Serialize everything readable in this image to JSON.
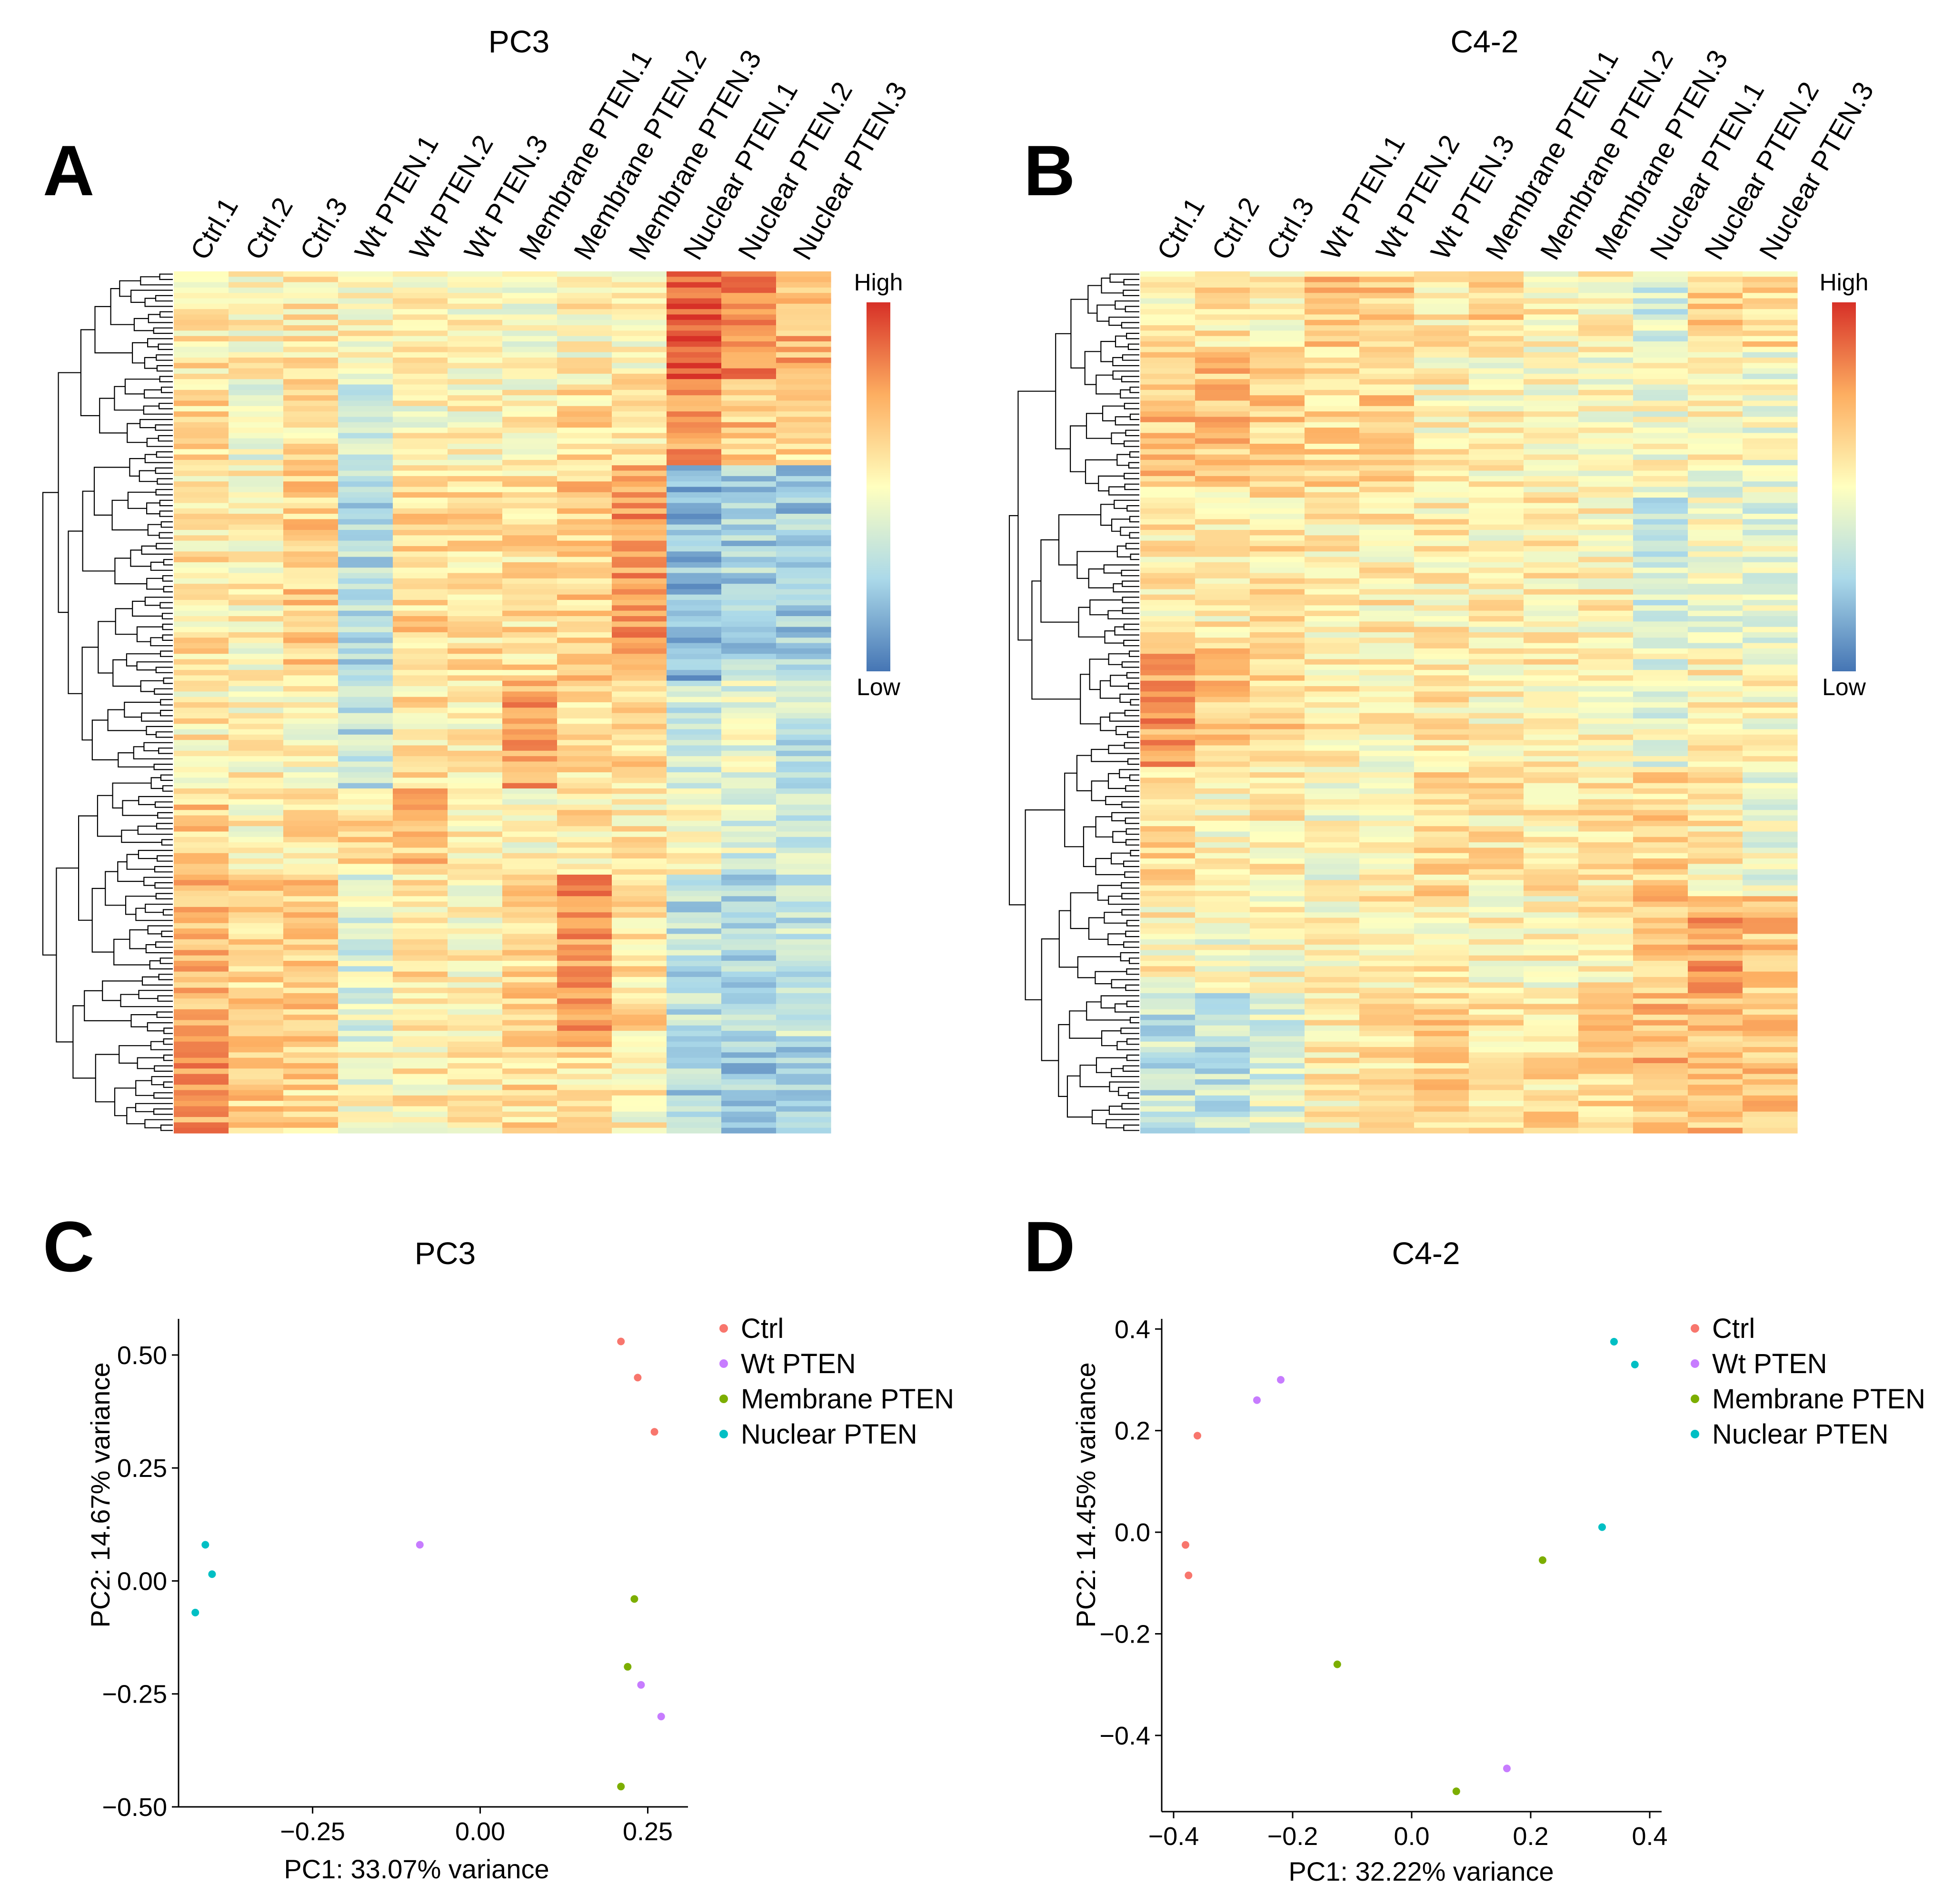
{
  "colors": {
    "Ctrl": "#F8766D",
    "Wt PTEN": "#C77CFF",
    "Membrane PTEN": "#7CAE00",
    "Nuclear PTEN": "#00BFC4",
    "heat_low": "#4575B4",
    "heat_mid": "#FFFFBF",
    "heat_high": "#D73027"
  },
  "chart_data": [
    {
      "panel": "A",
      "type": "heatmap",
      "title": "PC3",
      "columns": [
        "Ctrl.1",
        "Ctrl.2",
        "Ctrl.3",
        "Wt PTEN.1",
        "Wt PTEN.2",
        "Wt PTEN.3",
        "Membrane PTEN.1",
        "Membrane PTEN.2",
        "Membrane PTEN.3",
        "Nuclear PTEN.1",
        "Nuclear PTEN.2",
        "Nuclear PTEN.3"
      ],
      "row_count": 160,
      "scale": {
        "high": "High",
        "low": "Low"
      },
      "row_dendrogram": true,
      "block_pattern": [
        {
          "rows": [
            0,
            20
          ],
          "values": [
            0.15,
            0.05,
            0.1,
            0.05,
            0.0,
            0.0,
            0.0,
            0.05,
            0.05,
            0.85,
            0.65,
            0.45
          ]
        },
        {
          "rows": [
            20,
            36
          ],
          "values": [
            0.2,
            -0.1,
            0.15,
            -0.25,
            0.0,
            0.05,
            0.05,
            0.2,
            0.1,
            0.5,
            0.35,
            0.25
          ]
        },
        {
          "rows": [
            36,
            76
          ],
          "values": [
            0.15,
            0.05,
            0.3,
            -0.45,
            0.25,
            0.2,
            0.2,
            0.3,
            0.55,
            -0.65,
            -0.5,
            -0.55
          ]
        },
        {
          "rows": [
            76,
            96
          ],
          "values": [
            0.1,
            0.05,
            0.0,
            -0.4,
            0.15,
            0.1,
            0.5,
            0.2,
            0.2,
            -0.3,
            -0.15,
            -0.35
          ]
        },
        {
          "rows": [
            96,
            112
          ],
          "values": [
            0.3,
            0.05,
            0.15,
            0.2,
            0.35,
            0.15,
            0.0,
            0.15,
            0.1,
            0.0,
            -0.2,
            -0.25
          ]
        },
        {
          "rows": [
            112,
            144
          ],
          "values": [
            0.45,
            0.25,
            0.3,
            -0.2,
            0.15,
            0.05,
            0.25,
            0.6,
            0.2,
            -0.4,
            -0.45,
            -0.35
          ]
        },
        {
          "rows": [
            144,
            160
          ],
          "values": [
            0.55,
            0.3,
            0.25,
            -0.05,
            0.1,
            0.05,
            0.2,
            0.15,
            0.05,
            -0.5,
            -0.55,
            -0.55
          ]
        }
      ]
    },
    {
      "panel": "B",
      "type": "heatmap",
      "title": "C4-2",
      "columns": [
        "Ctrl.1",
        "Ctrl.2",
        "Ctrl.3",
        "Wt PTEN.1",
        "Wt PTEN.2",
        "Wt PTEN.3",
        "Membrane PTEN.1",
        "Membrane PTEN.2",
        "Membrane PTEN.3",
        "Nuclear PTEN.1",
        "Nuclear PTEN.2",
        "Nuclear PTEN.3"
      ],
      "row_count": 160,
      "scale": {
        "high": "High",
        "low": "Low"
      },
      "row_dendrogram": true,
      "block_pattern": [
        {
          "rows": [
            0,
            14
          ],
          "values": [
            0.1,
            0.15,
            0.1,
            0.35,
            0.35,
            0.15,
            0.25,
            0.1,
            0.1,
            -0.25,
            0.3,
            0.2
          ]
        },
        {
          "rows": [
            14,
            40
          ],
          "values": [
            0.35,
            0.35,
            0.3,
            0.25,
            0.3,
            0.05,
            0.05,
            0.0,
            0.0,
            -0.05,
            0.0,
            -0.1
          ]
        },
        {
          "rows": [
            40,
            70
          ],
          "values": [
            0.1,
            0.1,
            0.15,
            0.1,
            0.1,
            0.1,
            0.05,
            0.1,
            0.05,
            -0.3,
            -0.1,
            -0.15
          ]
        },
        {
          "rows": [
            70,
            92
          ],
          "values": [
            0.55,
            0.35,
            0.3,
            0.1,
            0.05,
            0.15,
            0.05,
            0.1,
            0.05,
            -0.15,
            0.05,
            0.0
          ]
        },
        {
          "rows": [
            92,
            116
          ],
          "values": [
            0.2,
            0.05,
            0.1,
            -0.05,
            0.1,
            0.2,
            0.15,
            0.15,
            0.15,
            0.25,
            0.1,
            -0.1
          ]
        },
        {
          "rows": [
            116,
            134
          ],
          "values": [
            0.05,
            -0.05,
            0.0,
            0.0,
            0.1,
            0.1,
            0.05,
            0.05,
            0.1,
            0.35,
            0.5,
            0.35
          ]
        },
        {
          "rows": [
            134,
            160
          ],
          "values": [
            -0.35,
            -0.35,
            -0.2,
            0.1,
            0.15,
            0.3,
            0.2,
            0.2,
            0.25,
            0.4,
            0.35,
            0.3
          ]
        }
      ]
    },
    {
      "panel": "C",
      "type": "scatter",
      "title": "PC3",
      "xlabel": "PC1: 33.07% variance",
      "ylabel": "PC2: 14.67% variance",
      "xlim": [
        -0.45,
        0.31
      ],
      "ylim": [
        -0.5,
        0.58
      ],
      "xticks": [
        -0.25,
        0.0,
        0.25
      ],
      "xtick_labels": [
        "−0.25",
        "0.00",
        "0.25"
      ],
      "yticks": [
        0.5,
        0.25,
        0.0,
        -0.25,
        -0.5
      ],
      "ytick_labels": [
        "0.50",
        "0.25",
        "0.00",
        "−0.25",
        "−0.50"
      ],
      "legend": [
        "Ctrl",
        "Wt PTEN",
        "Membrane PTEN",
        "Nuclear PTEN"
      ],
      "legend_position": "top-right",
      "series": [
        {
          "name": "Ctrl",
          "points": [
            [
              0.21,
              0.53
            ],
            [
              0.235,
              0.45
            ],
            [
              0.26,
              0.33
            ]
          ]
        },
        {
          "name": "Wt PTEN",
          "points": [
            [
              -0.09,
              0.08
            ],
            [
              0.24,
              -0.23
            ],
            [
              0.27,
              -0.3
            ]
          ]
        },
        {
          "name": "Membrane PTEN",
          "points": [
            [
              0.23,
              -0.04
            ],
            [
              0.22,
              -0.19
            ],
            [
              0.21,
              -0.455
            ]
          ]
        },
        {
          "name": "Nuclear PTEN",
          "points": [
            [
              -0.41,
              0.08
            ],
            [
              -0.4,
              0.015
            ],
            [
              -0.425,
              -0.07
            ]
          ]
        }
      ]
    },
    {
      "panel": "D",
      "type": "scatter",
      "title": "C4-2",
      "xlabel": "PC1: 32.22% variance",
      "ylabel": "PC2: 14.45% variance",
      "xlim": [
        -0.42,
        0.42
      ],
      "ylim": [
        -0.55,
        0.42
      ],
      "xticks": [
        -0.4,
        -0.2,
        0.0,
        0.2,
        0.4
      ],
      "xtick_labels": [
        "−0.4",
        "−0.2",
        "0.0",
        "0.2",
        "0.4"
      ],
      "yticks": [
        0.4,
        0.2,
        0.0,
        -0.2,
        -0.4
      ],
      "ytick_labels": [
        "0.4",
        "0.2",
        "0.0",
        "−0.2",
        "−0.4"
      ],
      "legend": [
        "Ctrl",
        "Wt PTEN",
        "Membrane PTEN",
        "Nuclear PTEN"
      ],
      "legend_position": "top-right",
      "series": [
        {
          "name": "Ctrl",
          "points": [
            [
              -0.36,
              0.19
            ],
            [
              -0.38,
              -0.025
            ],
            [
              -0.375,
              -0.085
            ]
          ]
        },
        {
          "name": "Wt PTEN",
          "points": [
            [
              -0.26,
              0.26
            ],
            [
              -0.22,
              0.3
            ],
            [
              0.16,
              -0.465
            ]
          ]
        },
        {
          "name": "Membrane PTEN",
          "points": [
            [
              0.22,
              -0.055
            ],
            [
              -0.125,
              -0.26
            ],
            [
              0.075,
              -0.51
            ]
          ]
        },
        {
          "name": "Nuclear PTEN",
          "points": [
            [
              0.34,
              0.375
            ],
            [
              0.375,
              0.33
            ],
            [
              0.32,
              0.01
            ]
          ]
        }
      ]
    }
  ]
}
